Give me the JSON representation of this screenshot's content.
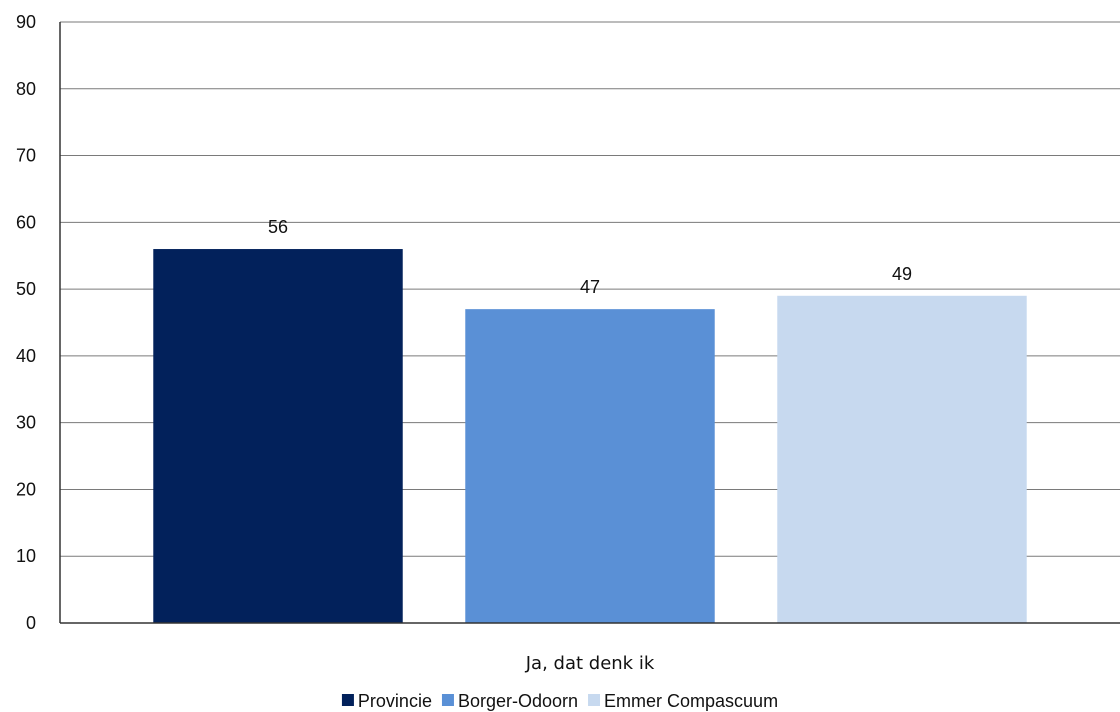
{
  "chart_data": {
    "type": "bar",
    "categories": [
      "Ja, dat denk ik"
    ],
    "series": [
      {
        "name": "Provincie",
        "values": [
          56
        ],
        "color": "#02215b"
      },
      {
        "name": "Borger-Odoorn",
        "values": [
          47
        ],
        "color": "#5a90d6"
      },
      {
        "name": "Emmer Compascuum",
        "values": [
          49
        ],
        "color": "#c7d9ef"
      }
    ],
    "data_labels": [
      "56",
      "47",
      "49"
    ],
    "ylim": [
      0,
      90
    ],
    "yticks": [
      0,
      10,
      20,
      30,
      40,
      50,
      60,
      70,
      80,
      90
    ],
    "grid": true,
    "legend_position": "bottom",
    "title": "",
    "xlabel": "",
    "ylabel": ""
  }
}
